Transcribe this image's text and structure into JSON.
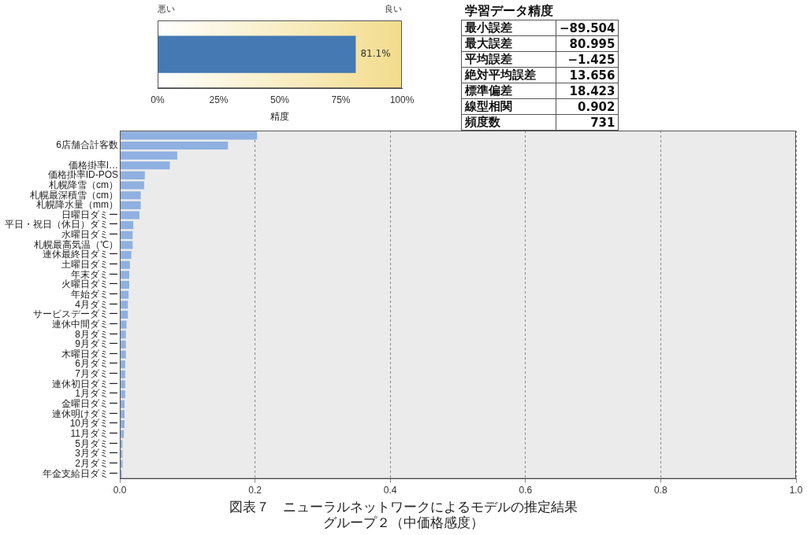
{
  "chart_data": [
    {
      "type": "bar",
      "orientation": "horizontal",
      "categories": [
        null
      ],
      "values": [
        81.1
      ],
      "color": "#4479b4",
      "xlim": [
        0,
        100
      ],
      "xticks": [
        {
          "value": 0,
          "label": "0%"
        },
        {
          "value": 25,
          "label": "25%"
        },
        {
          "value": 50,
          "label": "50%"
        },
        {
          "value": 75,
          "label": "75%"
        },
        {
          "value": 100,
          "label": "100%"
        }
      ],
      "tick_labels": "x",
      "xlabel": "精度",
      "value_labels": [
        "81.1%"
      ],
      "annotations": [
        "悪い",
        "良い"
      ]
    },
    {
      "type": "other",
      "title": "学習データ精度",
      "categories": [
        "最小誤差",
        "最大誤差",
        "平均誤差",
        "絶対平均誤差",
        "標準偏差",
        "線型相関",
        "頻度数"
      ],
      "values": [
        -89.504,
        80.995,
        -1.425,
        13.656,
        18.423,
        0.902,
        731
      ],
      "data_labels": true
    },
    {
      "type": "bar",
      "orientation": "horizontal",
      "title": "図表７　ニューラルネットワークによるモデルの推定結果",
      "subtitle": "グループ２（中価格感度）",
      "categories": [
        null,
        "6店舗合計客数",
        null,
        "価格掛率I…",
        "価格掛率ID-POS",
        "札幌降雪（cm）",
        "札幌最深積雪（cm）",
        "札幌降水量（mm）",
        "日曜日ダミー",
        "平日・祝日（休日）ダミー",
        "水曜日ダミー",
        "札幌最高気温（℃）",
        "連休最終日ダミー",
        "土曜日ダミー",
        "年末ダミー",
        "火曜日ダミー",
        "年始ダミー",
        "4月ダミー",
        "サービスデーダミー",
        "連休中間ダミー",
        "8月ダミー",
        "9月ダミー",
        "木曜日ダミー",
        "6月ダミー",
        "7月ダミー",
        "連休初日ダミー",
        "1月ダミー",
        "金曜日ダミー",
        "連休明けダミー",
        "10月ダミー",
        "11月ダミー",
        "5月ダミー",
        "3月ダミー",
        "2月ダミー",
        "年金支給日ダミー"
      ],
      "values": [
        0.203,
        0.16,
        0.085,
        0.074,
        0.037,
        0.036,
        0.031,
        0.031,
        0.029,
        0.02,
        0.019,
        0.019,
        0.017,
        0.015,
        0.014,
        0.014,
        0.013,
        0.012,
        0.012,
        0.01,
        0.009,
        0.009,
        0.009,
        0.008,
        0.008,
        0.008,
        0.008,
        0.007,
        0.007,
        0.007,
        0.006,
        0.004,
        0.004,
        0.004,
        0.003
      ],
      "color": "#8fb0e0",
      "xlim": [
        0,
        1
      ],
      "xticks": [
        {
          "value": 0,
          "label": "0.0"
        },
        {
          "value": 0.2,
          "label": "0.2"
        },
        {
          "value": 0.4,
          "label": "0.4"
        },
        {
          "value": 0.6,
          "label": "0.6"
        },
        {
          "value": 0.8,
          "label": "0.8"
        },
        {
          "value": 1,
          "label": "1.0"
        }
      ],
      "grid": "x"
    }
  ]
}
